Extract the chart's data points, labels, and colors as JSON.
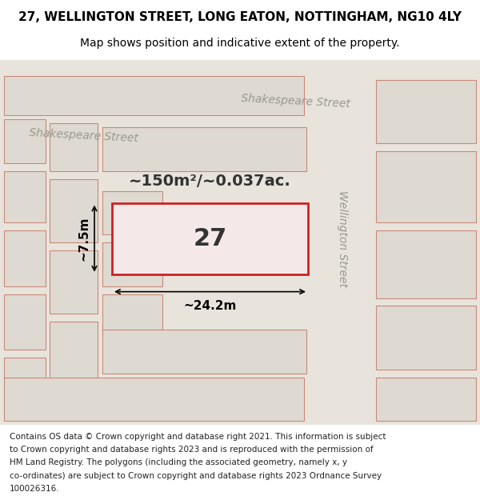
{
  "title_line1": "27, WELLINGTON STREET, LONG EATON, NOTTINGHAM, NG10 4LY",
  "title_line2": "Map shows position and indicative extent of the property.",
  "background_color": "#e8e4dc",
  "building_fill": "#dedad2",
  "building_edge": "#c8897a",
  "highlight_fill": "#f5e8e8",
  "highlight_edge": "#cc2222",
  "street_label_shakespeare_top": "Shakespeare Street",
  "street_label_shakespeare_left": "Shakespeare Street",
  "street_label_wellington": "Wellington Street",
  "property_label": "27",
  "area_label": "~150m²/~0.037ac.",
  "dim_width": "~24.2m",
  "dim_height": "~7.5m",
  "title_fontsize": 11,
  "subtitle_fontsize": 10,
  "footer_fontsize": 7.5,
  "street_fontsize": 10,
  "property_num_fontsize": 22,
  "area_fontsize": 14,
  "dim_fontsize": 11,
  "footer_lines": [
    "Contains OS data © Crown copyright and database right 2021. This information is subject",
    "to Crown copyright and database rights 2023 and is reproduced with the permission of",
    "HM Land Registry. The polygons (including the associated geometry, namely x, y",
    "co-ordinates) are subject to Crown copyright and database rights 2023 Ordnance Survey",
    "100026316."
  ]
}
